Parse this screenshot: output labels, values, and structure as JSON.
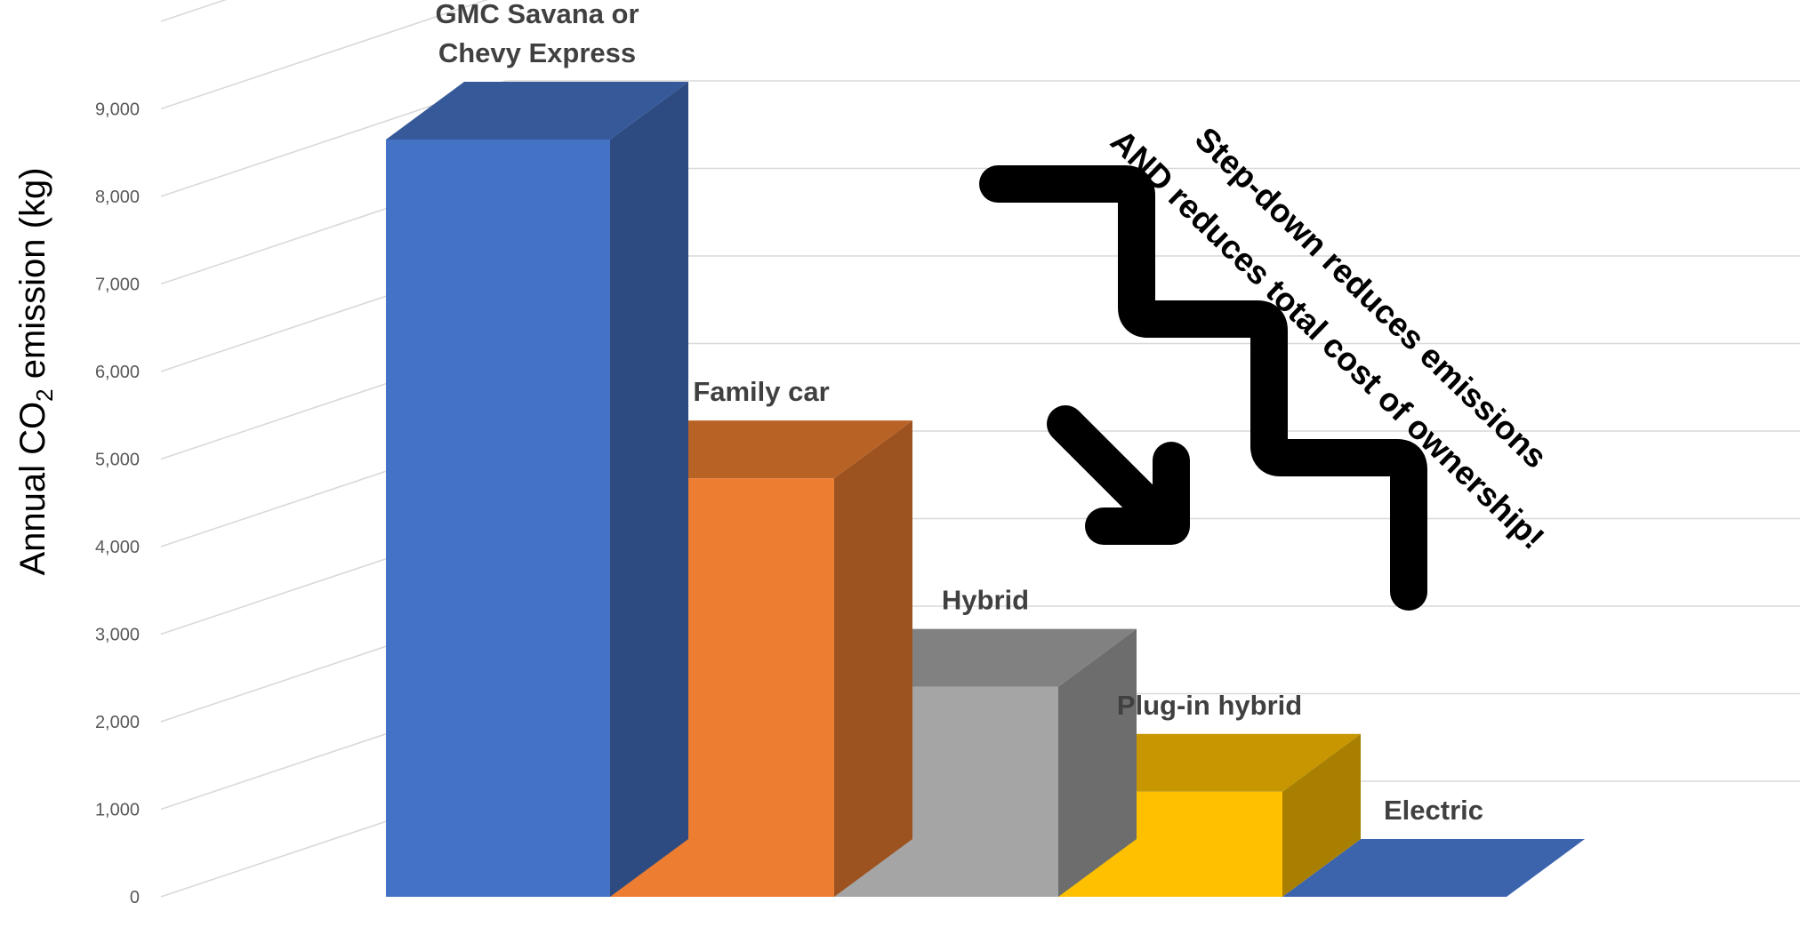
{
  "chart_data": {
    "type": "bar",
    "categories": [
      "GMC Savana or Chevy Express",
      "Family car",
      "Hybrid",
      "Plug-in hybrid",
      "Electric"
    ],
    "category_label_lines": [
      [
        "GMC Savana or",
        "Chevy Express"
      ],
      [
        "Family car"
      ],
      [
        "Hybrid"
      ],
      [
        "Plug-in hybrid"
      ],
      [
        "Electric"
      ]
    ],
    "values": [
      8650,
      4780,
      2400,
      1200,
      0
    ],
    "ylabel": {
      "prefix": "Annual CO",
      "subscript": "2",
      "suffix": " emission (kg)"
    },
    "ylim": [
      0,
      9000
    ],
    "yticks": [
      0,
      1000,
      2000,
      3000,
      4000,
      5000,
      6000,
      7000,
      8000,
      9000
    ],
    "ytick_labels": [
      "0",
      "1,000",
      "2,000",
      "3,000",
      "4,000",
      "5,000",
      "6,000",
      "7,000",
      "8,000",
      "9,000"
    ],
    "grid": true,
    "three_d": true,
    "colors": [
      "#4472C4",
      "#ED7D31",
      "#A5A5A5",
      "#FFC000",
      "#4472C4"
    ],
    "annotation": {
      "lines": [
        "Step-down reduces emissions",
        "AND reduces total cost of ownership!"
      ],
      "icons": [
        "staircase-line",
        "down-right-arrow-icon"
      ]
    }
  }
}
